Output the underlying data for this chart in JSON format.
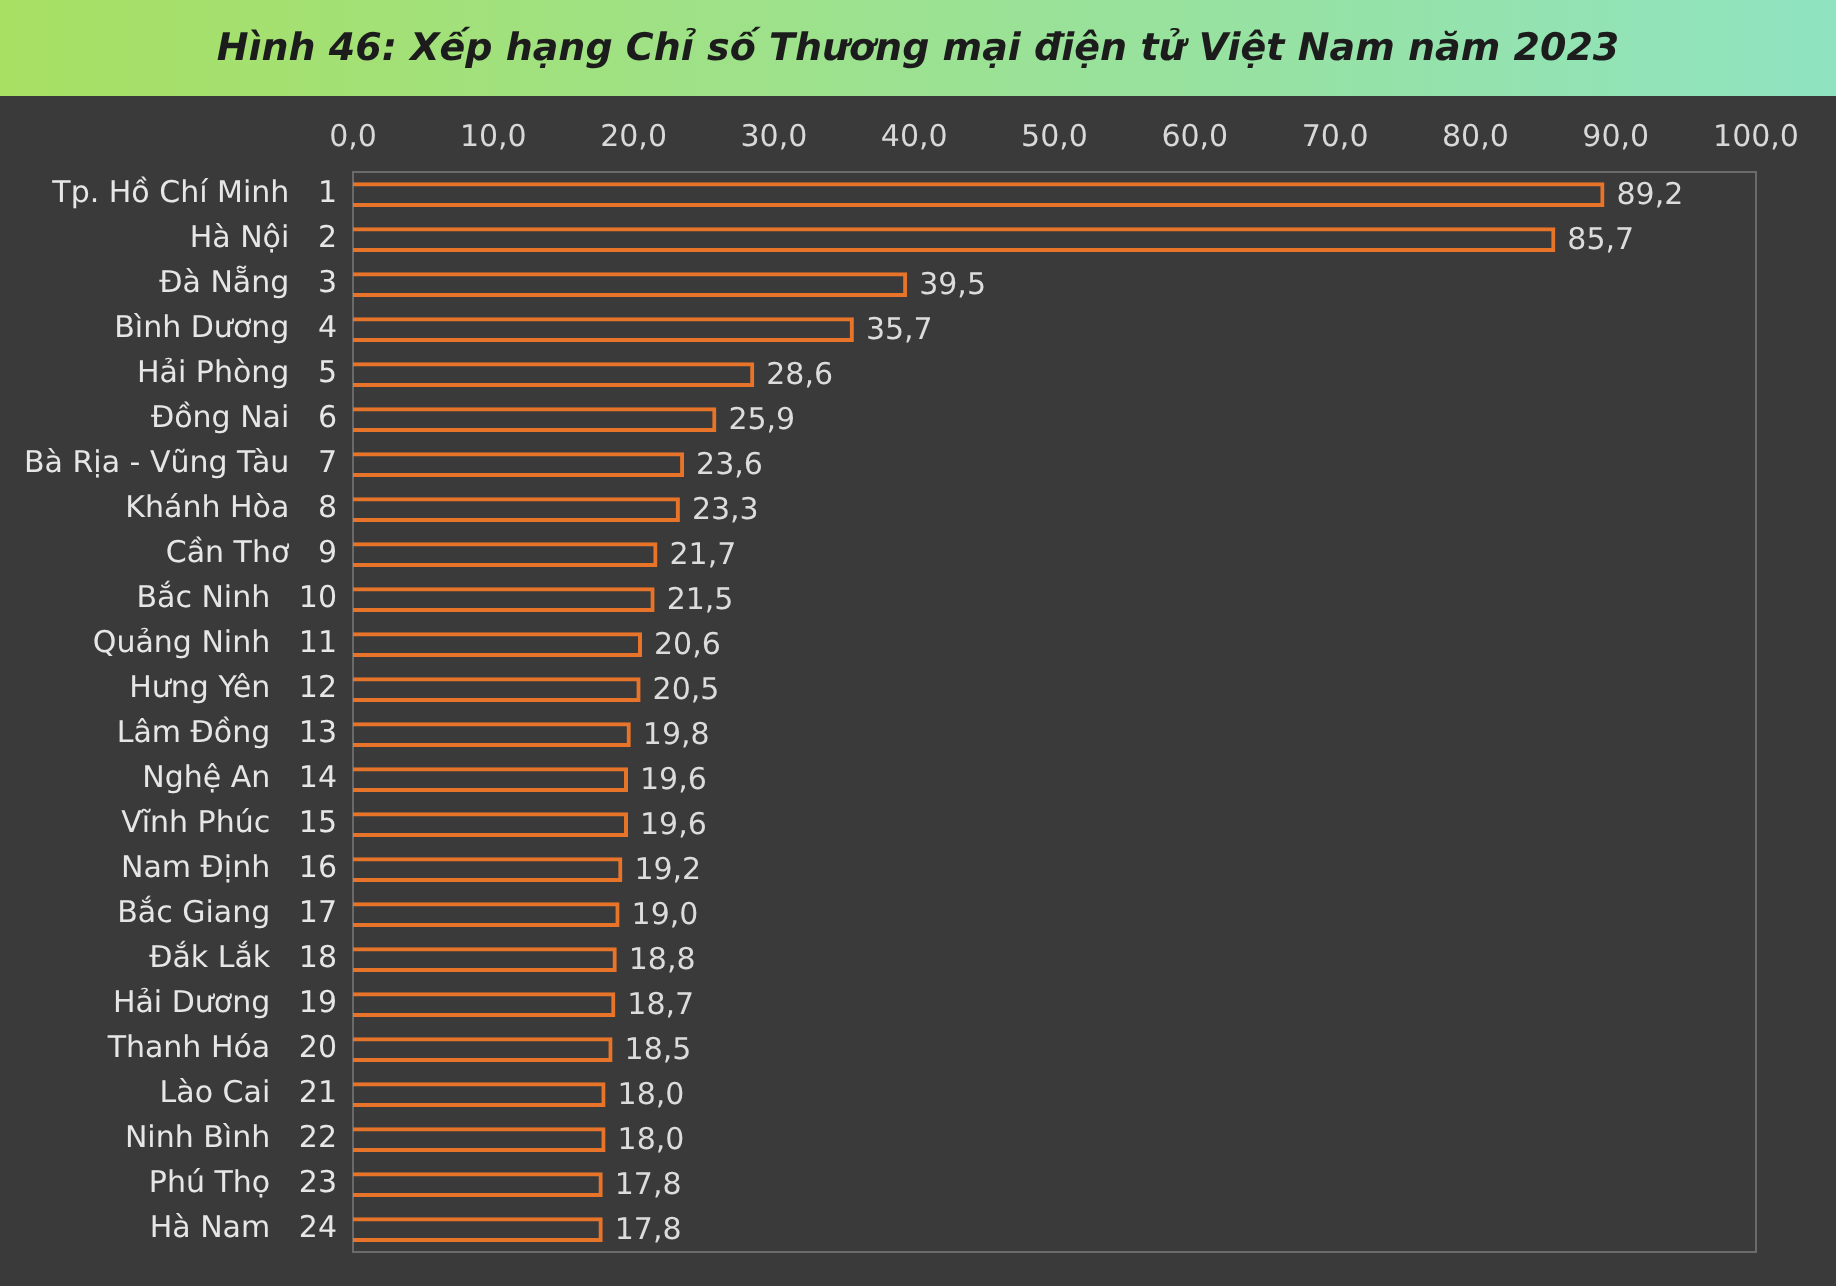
{
  "chart_data": {
    "type": "bar",
    "orientation": "horizontal",
    "title": "Hình 46: Xếp hạng Chỉ số Thương mại điện tử Việt Nam năm 2023",
    "categories": [
      "Tp. Hồ Chí Minh   1",
      "Hà Nội   2",
      "Đà Nẵng   3",
      "Bình Dương   4",
      "Hải Phòng   5",
      "Đồng Nai   6",
      "Bà Rịa - Vũng Tàu   7",
      "Khánh Hòa   8",
      "Cần Thơ   9",
      "Bắc Ninh   10",
      "Quảng Ninh   11",
      "Hưng Yên   12",
      "Lâm Đồng   13",
      "Nghệ An   14",
      "Vĩnh Phúc   15",
      "Nam Định   16",
      "Bắc Giang   17",
      "Đắk Lắk   18",
      "Hải Dương   19",
      "Thanh Hóa   20",
      "Lào Cai   21",
      "Ninh Bình   22",
      "Phú Thọ   23",
      "Hà Nam   24"
    ],
    "values": [
      89.2,
      85.7,
      39.5,
      35.7,
      28.6,
      25.9,
      23.6,
      23.3,
      21.7,
      21.5,
      20.6,
      20.5,
      19.8,
      19.6,
      19.6,
      19.2,
      19.0,
      18.8,
      18.7,
      18.5,
      18.0,
      18.0,
      17.8,
      17.8
    ],
    "value_labels": [
      "89,2",
      "85,7",
      "39,5",
      "35,7",
      "28,6",
      "25,9",
      "23,6",
      "23,3",
      "21,7",
      "21,5",
      "20,6",
      "20,5",
      "19,8",
      "19,6",
      "19,6",
      "19,2",
      "19,0",
      "18,8",
      "18,7",
      "18,5",
      "18,0",
      "18,0",
      "17,8",
      "17,8"
    ],
    "color": "#e8742a",
    "xlim": [
      0,
      100
    ],
    "xticks": [
      {
        "value": 0,
        "label": "0,0"
      },
      {
        "value": 10,
        "label": "10,0"
      },
      {
        "value": 20,
        "label": "20,0"
      },
      {
        "value": 30,
        "label": "30,0"
      },
      {
        "value": 40,
        "label": "40,0"
      },
      {
        "value": 50,
        "label": "50,0"
      },
      {
        "value": 60,
        "label": "60,0"
      },
      {
        "value": 70,
        "label": "70,0"
      },
      {
        "value": 80,
        "label": "80,0"
      },
      {
        "value": 90,
        "label": "90,0"
      },
      {
        "value": 100,
        "label": "100,0"
      }
    ],
    "grid": false,
    "legend": false
  }
}
